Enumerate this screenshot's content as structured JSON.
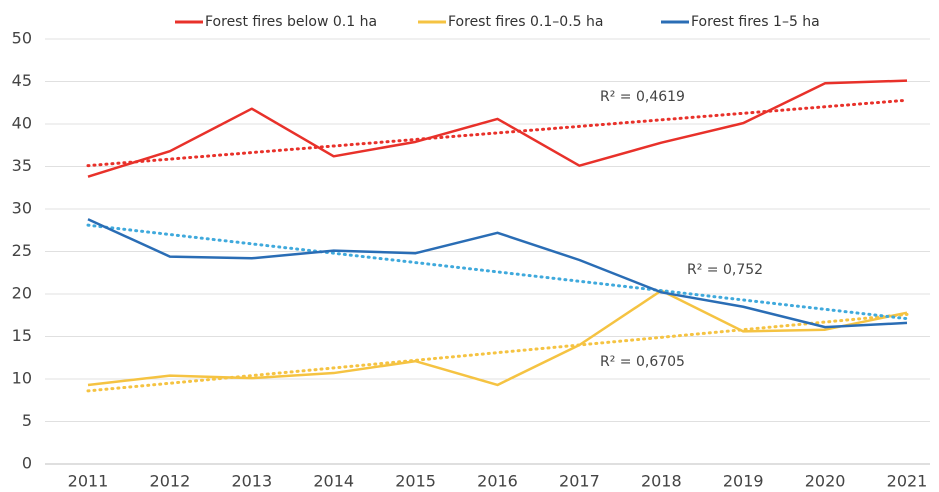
{
  "chart_data": {
    "type": "line",
    "categories": [
      "2011",
      "2012",
      "2013",
      "2014",
      "2015",
      "2016",
      "2017",
      "2018",
      "2019",
      "2020",
      "2021"
    ],
    "series": [
      {
        "name": "Forest fires below 0.1 ha",
        "color": "#e8312a",
        "trend_color": "#e8312a",
        "values": [
          33.8,
          36.8,
          41.8,
          36.2,
          37.9,
          40.6,
          35.1,
          37.8,
          40.1,
          44.8,
          45.1
        ],
        "trend": [
          35.1,
          42.8
        ],
        "annotation": "R² = 0,4619"
      },
      {
        "name": "Forest fires 0.1–0.5 ha",
        "color": "#f5c342",
        "trend_color": "#f5c342",
        "values": [
          9.3,
          10.4,
          10.1,
          10.7,
          12.1,
          9.3,
          14.0,
          20.4,
          15.6,
          15.8,
          17.8
        ],
        "trend": [
          8.6,
          17.6
        ],
        "annotation": "R² = 0,6705"
      },
      {
        "name": "Forest fires 1–5 ha",
        "color": "#2a6db5",
        "trend_color": "#3fa9dc",
        "values": [
          28.8,
          24.4,
          24.2,
          25.1,
          24.8,
          27.2,
          24.0,
          20.2,
          18.5,
          16.1,
          16.6
        ],
        "trend": [
          28.1,
          17.1
        ],
        "annotation": "R² = 0,752"
      }
    ],
    "ylim": [
      0,
      50
    ],
    "yticks": [
      0,
      5,
      10,
      15,
      20,
      25,
      30,
      35,
      40,
      45,
      50
    ],
    "grid": true
  }
}
